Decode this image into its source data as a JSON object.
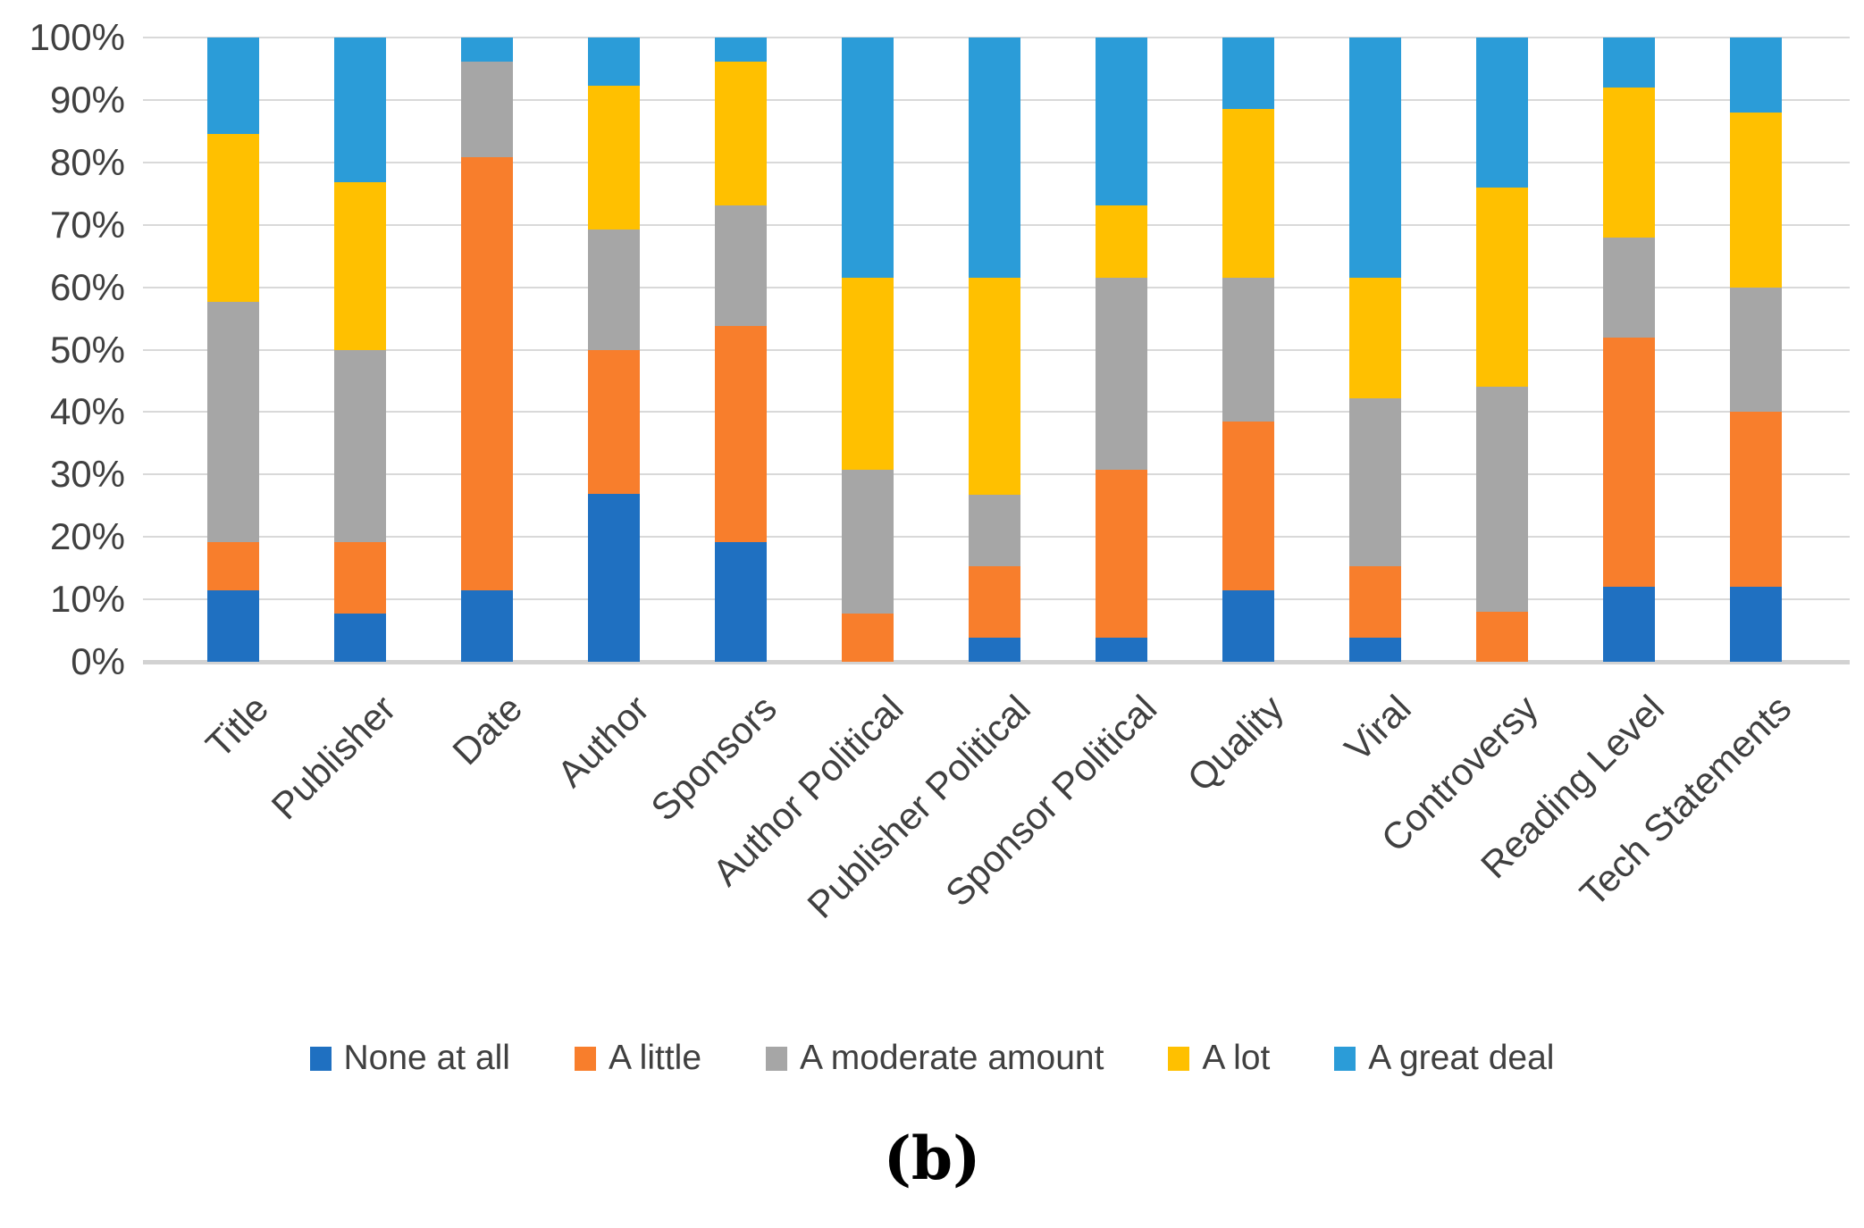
{
  "caption": "(b)",
  "chart_data": {
    "type": "bar",
    "variant": "100%-stacked-column",
    "title": "",
    "xlabel": "",
    "ylabel": "",
    "ylim": [
      0,
      100
    ],
    "grid": true,
    "legend_position": "bottom",
    "yticks_top_down": [
      "100%",
      "90%",
      "80%",
      "70%",
      "60%",
      "50%",
      "40%",
      "30%",
      "20%",
      "10%",
      "0%"
    ],
    "categories": [
      "Title",
      "Publisher",
      "Date",
      "Author",
      "Sponsors",
      "Author Political",
      "Publisher Political",
      "Sponsor Political",
      "Quality",
      "Viral",
      "Controversy",
      "Reading Level",
      "Tech Statements"
    ],
    "series": [
      {
        "name": "None at all",
        "color": "#1F70C1",
        "values": [
          11.5,
          7.7,
          11.5,
          26.9,
          19.2,
          0,
          3.8,
          3.8,
          11.5,
          3.8,
          0,
          12,
          12
        ]
      },
      {
        "name": "A little",
        "color": "#F87E2C",
        "values": [
          7.7,
          11.5,
          69.2,
          23.1,
          34.6,
          7.7,
          11.5,
          26.9,
          26.9,
          11.5,
          8,
          40,
          28
        ]
      },
      {
        "name": "A moderate amount",
        "color": "#A6A6A6",
        "values": [
          38.5,
          30.8,
          15.4,
          19.2,
          19.2,
          23.1,
          11.5,
          30.8,
          23.1,
          26.9,
          36,
          16,
          20
        ]
      },
      {
        "name": "A lot",
        "color": "#FFC000",
        "values": [
          26.9,
          26.9,
          0,
          23.1,
          23.1,
          30.8,
          34.6,
          11.5,
          26.9,
          19.2,
          32,
          24,
          28
        ]
      },
      {
        "name": "A great deal",
        "color": "#2B9CD8",
        "values": [
          15.4,
          23.1,
          3.8,
          7.7,
          3.8,
          38.5,
          38.5,
          26.9,
          11.5,
          38.5,
          24,
          8,
          12
        ]
      }
    ],
    "colors": {
      "gridline": "#d9d9d9",
      "axis_line": "#d2d2d2",
      "tick_text": "#404040",
      "background": "#ffffff"
    }
  }
}
